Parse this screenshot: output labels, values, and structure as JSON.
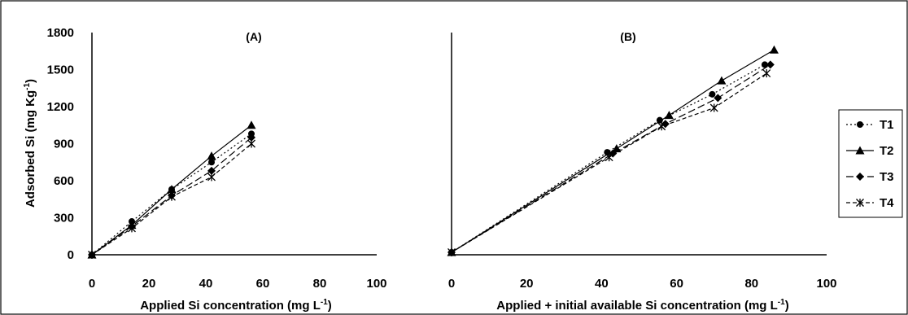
{
  "chart_data": [
    {
      "type": "line",
      "title": "(A)",
      "xlabel": "Applied Si concentration (mg L",
      "xlabel_sup": "-1",
      "xlabel_end": ")",
      "ylabel": "Adsorbed Si (mg Kg",
      "ylabel_sup": "-1",
      "ylabel_end": ")",
      "xlim": [
        0,
        100
      ],
      "ylim": [
        0,
        1800
      ],
      "xticks": [
        "0",
        "20",
        "40",
        "60",
        "80",
        "100"
      ],
      "yticks": [
        "0",
        "300",
        "600",
        "900",
        "1200",
        "1500",
        "1800"
      ],
      "series": [
        {
          "name": "T1",
          "marker": "circle",
          "dash": "dotted",
          "x": [
            0,
            14,
            28,
            42,
            56
          ],
          "y": [
            0,
            270,
            530,
            750,
            980
          ]
        },
        {
          "name": "T2",
          "marker": "triangle",
          "dash": "solid",
          "x": [
            0,
            14,
            28,
            42,
            56
          ],
          "y": [
            0,
            240,
            530,
            800,
            1050
          ]
        },
        {
          "name": "T3",
          "marker": "diamond",
          "dash": "longdash",
          "x": [
            0,
            14,
            28,
            42,
            56
          ],
          "y": [
            0,
            230,
            480,
            680,
            950
          ]
        },
        {
          "name": "T4",
          "marker": "star",
          "dash": "shortdash",
          "x": [
            0,
            14,
            28,
            42,
            56
          ],
          "y": [
            0,
            215,
            470,
            630,
            900
          ]
        }
      ]
    },
    {
      "type": "line",
      "title": "(B)",
      "xlabel": "Applied + initial available Si concentration (mg L",
      "xlabel_sup": "-1",
      "xlabel_end": ")",
      "xlim": [
        0,
        100
      ],
      "ylim": [
        0,
        1800
      ],
      "xticks": [
        "0",
        "20",
        "40",
        "60",
        "80",
        "100"
      ],
      "series": [
        {
          "name": "T1",
          "marker": "circle",
          "dash": "dotted",
          "x": [
            0,
            41.5,
            55.5,
            69.5,
            83.5
          ],
          "y": [
            20,
            830,
            1090,
            1300,
            1540
          ]
        },
        {
          "name": "T2",
          "marker": "triangle",
          "dash": "solid",
          "x": [
            0,
            44,
            58,
            72,
            86
          ],
          "y": [
            20,
            860,
            1130,
            1410,
            1660
          ]
        },
        {
          "name": "T3",
          "marker": "diamond",
          "dash": "longdash",
          "x": [
            0,
            43,
            57,
            71,
            85
          ],
          "y": [
            20,
            820,
            1060,
            1270,
            1540
          ]
        },
        {
          "name": "T4",
          "marker": "star",
          "dash": "shortdash",
          "x": [
            0,
            42,
            56,
            70,
            84
          ],
          "y": [
            20,
            790,
            1040,
            1190,
            1470
          ]
        }
      ]
    }
  ],
  "legend": {
    "placement": "right",
    "entries": [
      "T1",
      "T2",
      "T3",
      "T4"
    ]
  }
}
